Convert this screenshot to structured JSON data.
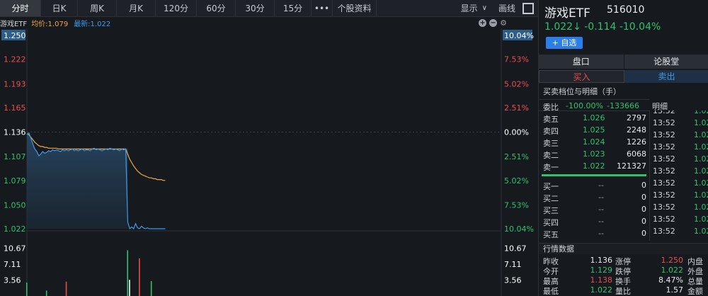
{
  "toolbar": {
    "tabs": [
      "分时",
      "日K",
      "周K",
      "月K",
      "120分",
      "60分",
      "30分",
      "15分",
      "•••",
      "个股资料"
    ],
    "display_label": "显示",
    "draw_label": "画线"
  },
  "legend": {
    "name": "游戏ETF",
    "avg": "均价:1.079",
    "last": "最新:1.022"
  },
  "chart": {
    "price_ticks": [
      "1.250",
      "1.222",
      "1.193",
      "1.165",
      "1.136",
      "1.107",
      "1.079",
      "1.050",
      "1.022"
    ],
    "pct_ticks": [
      "10.04%",
      "7.53%",
      "5.02%",
      "2.51%",
      "0.00%",
      "2.51%",
      "5.02%",
      "7.53%",
      "10.04%"
    ],
    "volume_ticks": [
      "10.67",
      "7.11",
      "3.56"
    ],
    "colors": {
      "up": "#e84d4d",
      "down": "#2fc26b",
      "flat": "#ffffff",
      "price_line": "#3d9be9",
      "avg_line": "#f0a34a"
    }
  },
  "chart_data": {
    "type": "line",
    "ylim": [
      1.022,
      1.25
    ],
    "prev_close": 1.136,
    "x_count": 241,
    "series": [
      {
        "values": [
          1.133,
          1.135,
          1.129,
          1.122,
          1.116,
          1.113,
          1.108,
          1.11,
          1.113,
          1.111,
          1.112,
          1.114,
          1.113,
          1.115,
          1.114,
          1.115,
          1.114,
          1.113,
          1.115,
          1.114,
          1.115,
          1.114,
          1.115,
          1.116,
          1.114,
          1.115,
          1.114,
          1.115,
          1.116,
          1.114,
          1.115,
          1.115,
          1.114,
          1.116,
          1.117,
          1.115,
          1.116,
          1.115,
          1.114,
          1.115,
          1.116,
          1.115,
          1.117,
          1.116,
          1.115,
          1.116,
          1.115,
          1.114,
          1.116,
          1.115,
          1.116,
          1.03,
          1.022,
          1.024,
          1.022,
          1.028,
          1.023,
          1.022,
          1.025,
          1.023,
          1.022,
          1.023,
          1.022,
          1.022,
          1.022,
          1.022,
          1.022,
          1.022,
          1.022,
          1.022,
          1.022
        ]
      },
      {
        "values": [
          1.134,
          1.133,
          1.13,
          1.127,
          1.124,
          1.122,
          1.12,
          1.119,
          1.119,
          1.118,
          1.118,
          1.117,
          1.117,
          1.117,
          1.117,
          1.117,
          1.116,
          1.116,
          1.116,
          1.116,
          1.116,
          1.116,
          1.116,
          1.116,
          1.116,
          1.116,
          1.116,
          1.116,
          1.116,
          1.116,
          1.116,
          1.116,
          1.116,
          1.116,
          1.116,
          1.116,
          1.116,
          1.116,
          1.116,
          1.116,
          1.116,
          1.116,
          1.116,
          1.116,
          1.116,
          1.116,
          1.116,
          1.116,
          1.116,
          1.116,
          1.116,
          1.11,
          1.104,
          1.1,
          1.096,
          1.093,
          1.09,
          1.088,
          1.086,
          1.085,
          1.084,
          1.083,
          1.082,
          1.082,
          1.081,
          1.081,
          1.08,
          1.08,
          1.08,
          1.079,
          1.079
        ]
      }
    ],
    "volume": [
      {
        "i": 0,
        "v": 3.0,
        "c": "down"
      },
      {
        "i": 10,
        "v": 1.2,
        "c": "down"
      },
      {
        "i": 20,
        "v": 3.2,
        "c": "up"
      },
      {
        "i": 51,
        "v": 10.2,
        "c": "down"
      },
      {
        "i": 52,
        "v": 3.6,
        "c": "flat"
      },
      {
        "i": 57,
        "v": 8.4,
        "c": "up"
      },
      {
        "i": 63,
        "v": 3.3,
        "c": "down"
      }
    ],
    "volume_max": 14.22
  },
  "stock": {
    "name": "游戏ETF",
    "code": "516010",
    "price_line": "1.022↓ -0.114 -10.04%",
    "add_label": "+ 自选"
  },
  "tabs2": [
    "盘口",
    "论股堂"
  ],
  "buy_label": "买入",
  "sell_label": "卖出",
  "detail_title": "买卖档位与明细（手）",
  "weibi": {
    "label": "委比",
    "pct": "-100.00%",
    "diff": "-133666"
  },
  "mingxi": "明细",
  "orderbook": [
    {
      "label": "卖五",
      "price": "1.026",
      "qty": "2797"
    },
    {
      "label": "卖四",
      "price": "1.025",
      "qty": "2248"
    },
    {
      "label": "卖三",
      "price": "1.024",
      "qty": "1226"
    },
    {
      "label": "卖二",
      "price": "1.023",
      "qty": "6068"
    },
    {
      "label": "卖一",
      "price": "1.022",
      "qty": "121327"
    },
    {
      "label": "买一",
      "price": "--",
      "qty": "0"
    },
    {
      "label": "买二",
      "price": "--",
      "qty": "0"
    },
    {
      "label": "买三",
      "price": "--",
      "qty": "0"
    },
    {
      "label": "买四",
      "price": "--",
      "qty": "0"
    },
    {
      "label": "买五",
      "price": "--",
      "qty": "0"
    }
  ],
  "trades": [
    {
      "time": "13:52",
      "val": "1.02"
    },
    {
      "time": "13:52",
      "val": "1.02"
    },
    {
      "time": "13:52",
      "val": "1.02"
    },
    {
      "time": "13:52",
      "val": "1.02"
    },
    {
      "time": "13:52",
      "val": "1.02"
    },
    {
      "time": "13:52",
      "val": "1.02"
    },
    {
      "time": "13:52",
      "val": "1.02"
    },
    {
      "time": "13:52",
      "val": "1.02"
    },
    {
      "time": "13:52",
      "val": "1.02"
    },
    {
      "time": "13:52",
      "val": "1.02"
    },
    {
      "time": "13:52",
      "val": "1.02"
    }
  ],
  "market_title": "行情数据",
  "market": [
    {
      "a": "昨收",
      "b": "1.136",
      "bc": "white",
      "c": "涨停",
      "d": "1.250",
      "dc": "red",
      "e": "内盘"
    },
    {
      "a": "今开",
      "b": "1.129",
      "bc": "green",
      "c": "跌停",
      "d": "1.022",
      "dc": "green",
      "e": "外盘"
    },
    {
      "a": "最高",
      "b": "1.138",
      "bc": "red",
      "c": "换手",
      "d": "8.47%",
      "dc": "white",
      "e": "总量"
    },
    {
      "a": "最低",
      "b": "1.022",
      "bc": "green",
      "c": "量比",
      "d": "1.57",
      "dc": "white",
      "e": "金额"
    }
  ]
}
